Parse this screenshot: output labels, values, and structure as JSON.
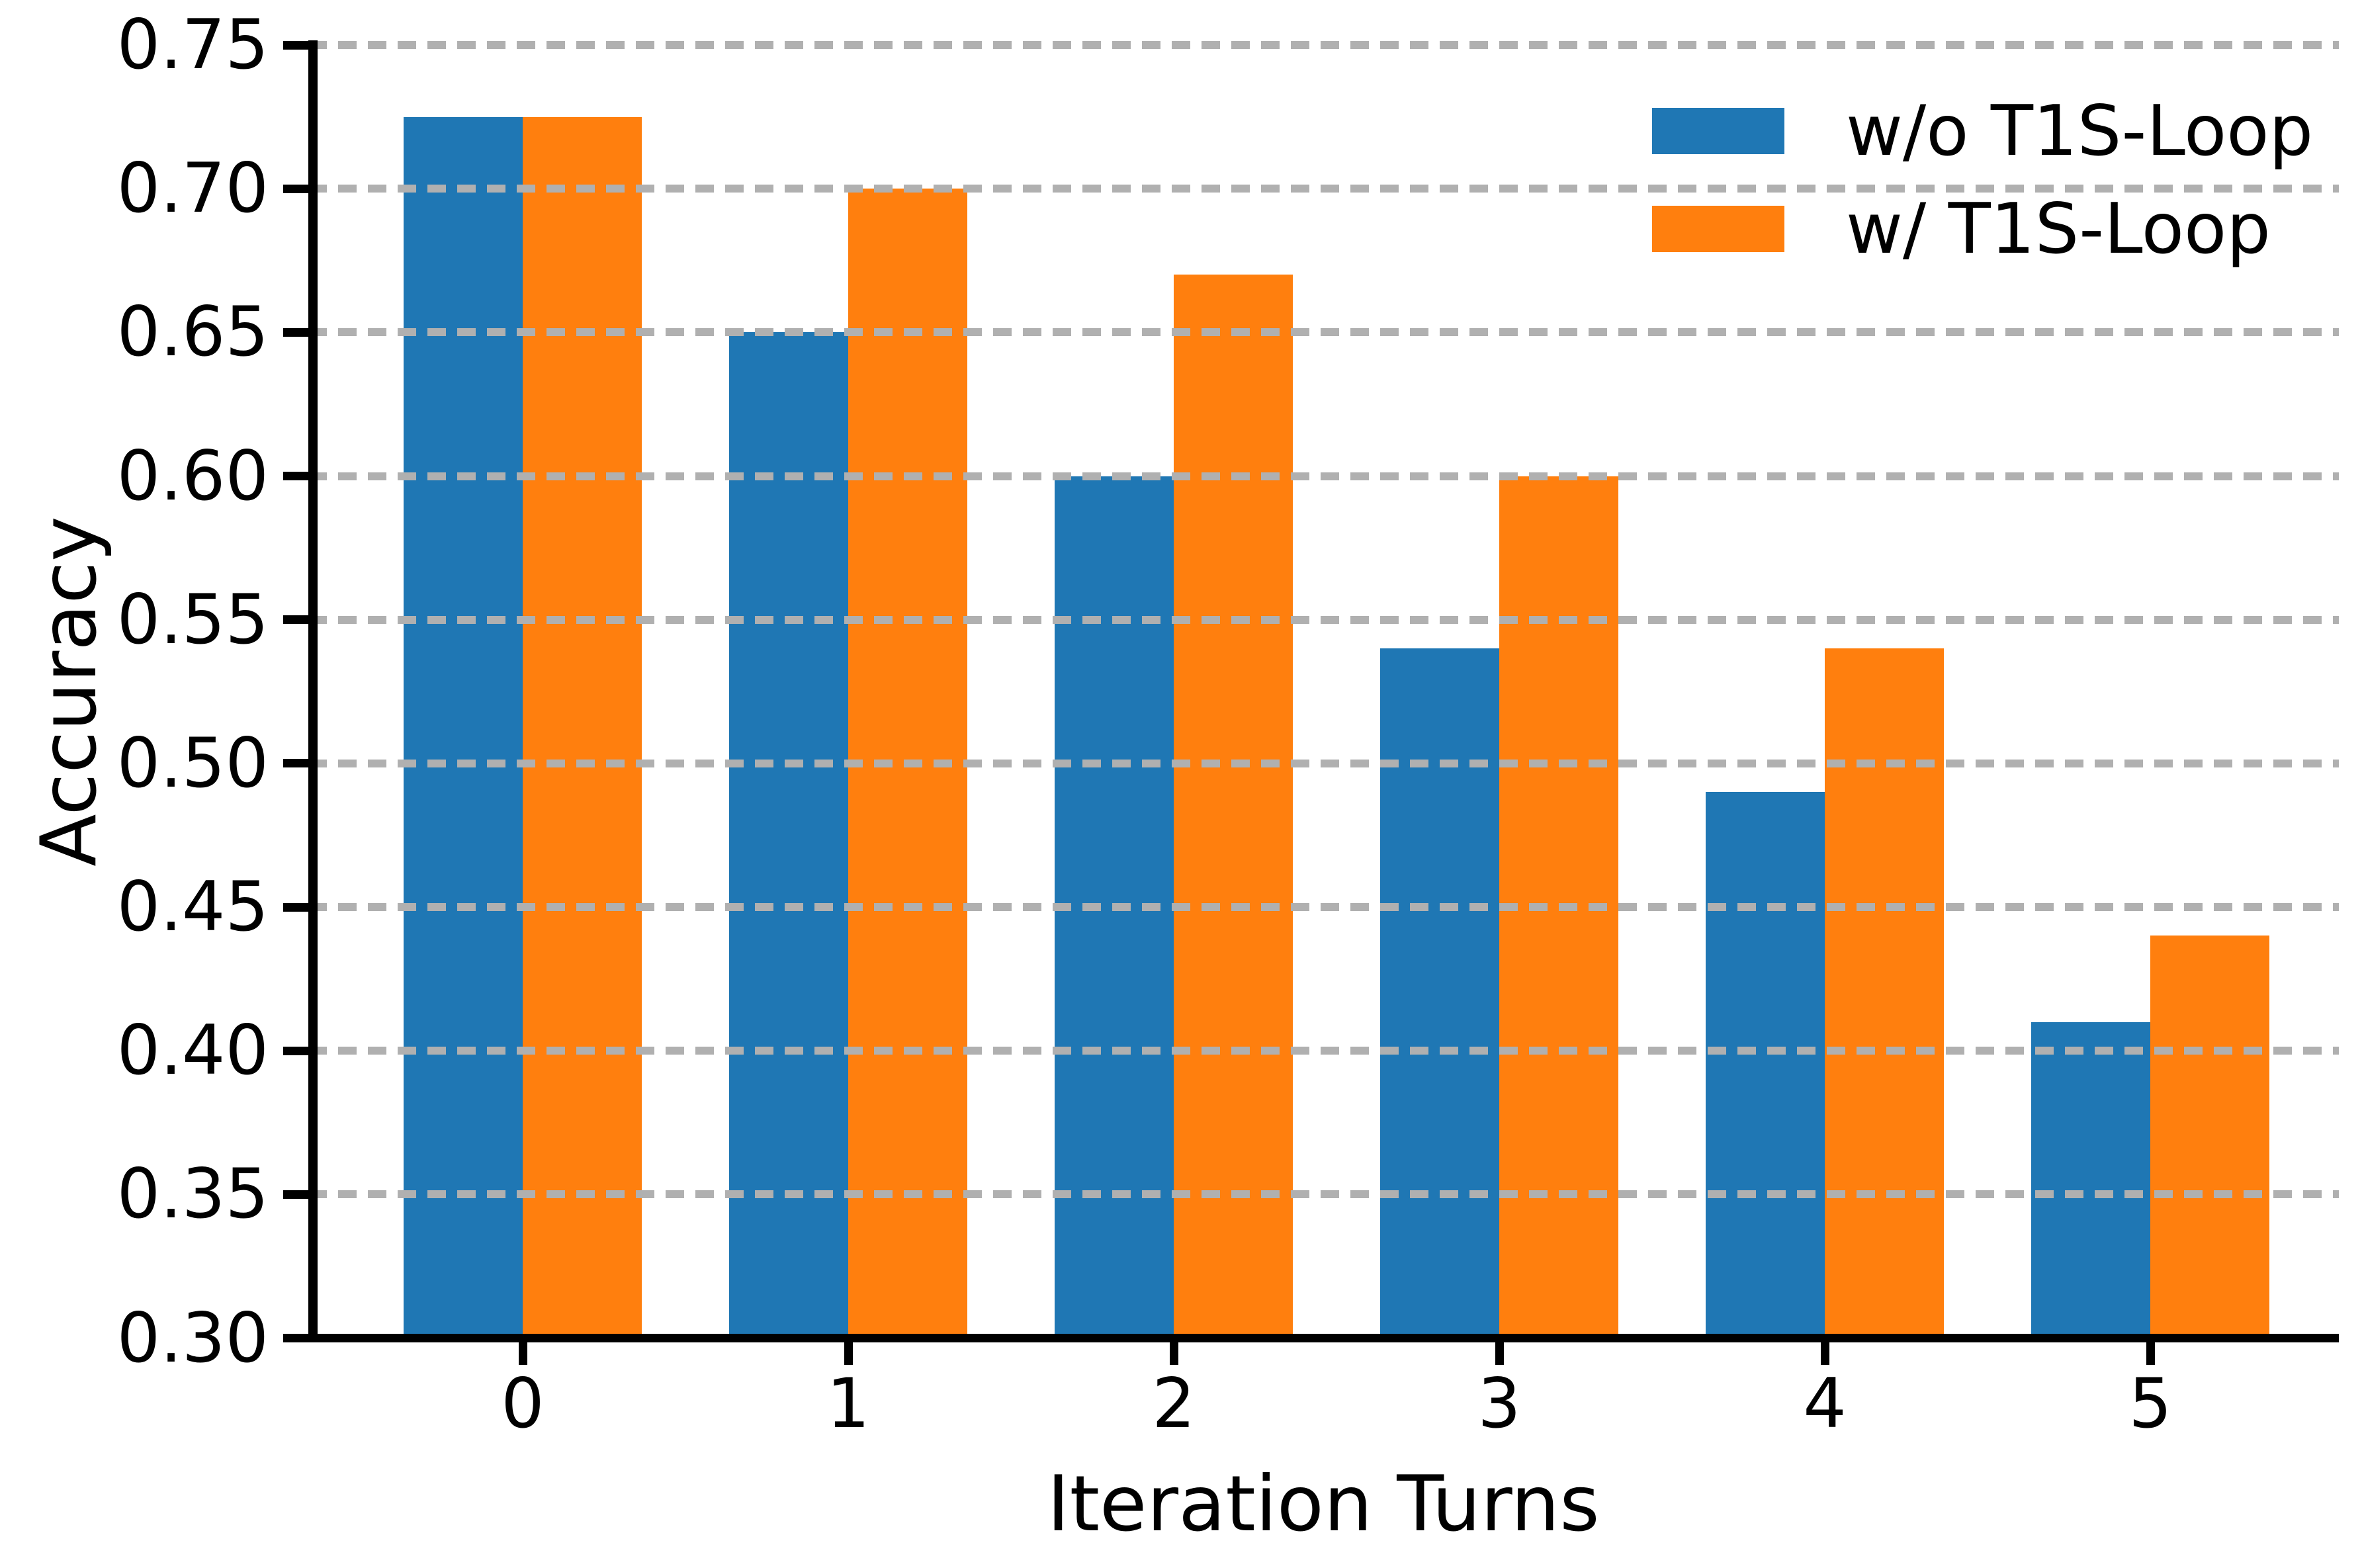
{
  "chart_data": {
    "type": "bar",
    "title": "",
    "xlabel": "Iteration Turns",
    "ylabel": "Accuracy",
    "categories": [
      "0",
      "1",
      "2",
      "3",
      "4",
      "5"
    ],
    "series": [
      {
        "name": "w/o T1S-Loop",
        "color": "#1f77b4",
        "values": [
          0.725,
          0.65,
          0.6,
          0.54,
          0.49,
          0.41
        ]
      },
      {
        "name": "w/ T1S-Loop",
        "color": "#ff7f0e",
        "values": [
          0.725,
          0.7,
          0.67,
          0.6,
          0.54,
          0.44
        ]
      }
    ],
    "ylim": [
      0.3,
      0.75
    ],
    "ytick_step": 0.05,
    "ytick_labels": [
      "0.30",
      "0.35",
      "0.40",
      "0.45",
      "0.50",
      "0.55",
      "0.60",
      "0.65",
      "0.70",
      "0.75"
    ],
    "grid": "horizontal-dashed",
    "grid_color": "#b0b0b0",
    "axis_color": "#000000",
    "background_color": "#ffffff",
    "legend_position": "upper right"
  }
}
